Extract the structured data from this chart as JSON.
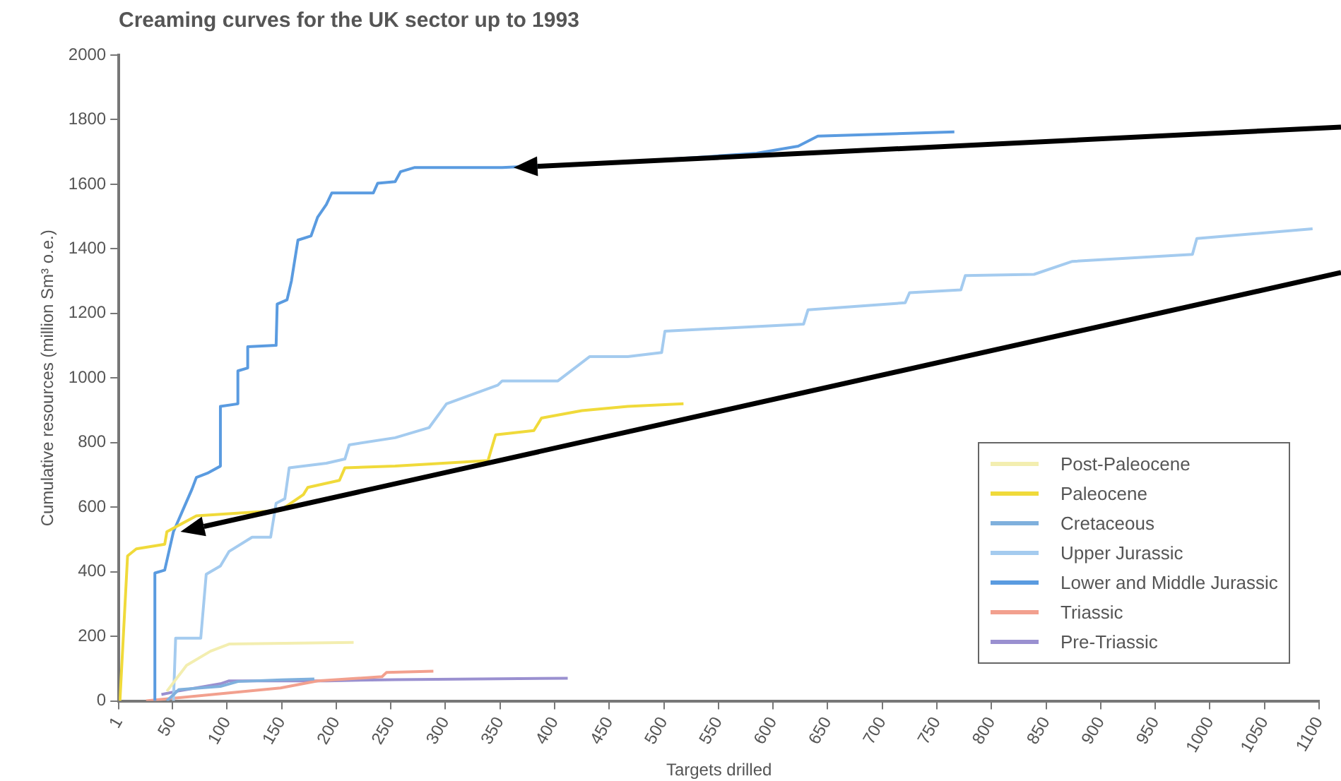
{
  "chart_data": {
    "type": "line",
    "title": "Creaming curves for the UK sector up to 1993",
    "xlabel": "Targets drilled",
    "ylabel": "Cumulative resources (million Sm³ o.e.)",
    "xlim": [
      1,
      1100
    ],
    "xticks": [
      1,
      50,
      100,
      150,
      200,
      250,
      300,
      350,
      400,
      450,
      500,
      550,
      600,
      650,
      700,
      750,
      800,
      850,
      900,
      950,
      1000,
      1050,
      1100
    ],
    "ylim": [
      0,
      2000
    ],
    "yticks": [
      0,
      200,
      400,
      600,
      800,
      1000,
      1200,
      1400,
      1600,
      1800,
      2000
    ],
    "grid": false,
    "legend": "bottom right",
    "marker": "none",
    "line_style": "solid",
    "series": [
      {
        "name": "Post-Paleocene",
        "color": "#f3eeb0",
        "x": [
          45,
          63,
          85,
          102,
          216
        ],
        "values": [
          30,
          110,
          154,
          176,
          181
        ]
      },
      {
        "name": "Paleocene",
        "color": "#f0da3a",
        "x": [
          2,
          9,
          17,
          43,
          45,
          72,
          149,
          170,
          174,
          203,
          208,
          254,
          339,
          346,
          381,
          388,
          425,
          467,
          518
        ],
        "values": [
          0,
          449,
          471,
          485,
          524,
          573,
          590,
          639,
          661,
          683,
          722,
          727,
          744,
          824,
          837,
          876,
          899,
          912,
          920
        ]
      },
      {
        "name": "Cretaceous",
        "color": "#7fb0dd",
        "x": [
          45,
          56,
          94,
          110,
          150,
          180
        ],
        "values": [
          0,
          35,
          45,
          60,
          65,
          68
        ]
      },
      {
        "name": "Upper Jurassic",
        "color": "#a4cbef",
        "x": [
          51,
          53,
          76,
          81,
          94,
          102,
          123,
          140,
          145,
          153,
          157,
          191,
          208,
          212,
          254,
          285,
          301,
          348,
          352,
          403,
          432,
          467,
          498,
          501,
          628,
          632,
          721,
          725,
          772,
          776,
          839,
          874,
          984,
          988,
          1094
        ],
        "values": [
          0,
          194,
          194,
          392,
          418,
          463,
          507,
          507,
          612,
          626,
          722,
          736,
          749,
          793,
          815,
          846,
          920,
          978,
          991,
          991,
          1066,
          1066,
          1079,
          1145,
          1167,
          1211,
          1233,
          1264,
          1273,
          1317,
          1321,
          1361,
          1383,
          1432,
          1462
        ]
      },
      {
        "name": "Lower and Middle Jurassic",
        "color": "#5a9be0",
        "x": [
          34,
          34,
          43,
          51,
          68,
          72,
          82,
          94,
          94,
          110,
          110,
          119,
          119,
          145,
          146,
          155,
          159,
          165,
          177,
          183,
          191,
          196,
          234,
          238,
          254,
          259,
          272,
          352,
          467,
          530,
          585,
          623,
          641,
          766
        ],
        "values": [
          0,
          396,
          405,
          524,
          656,
          692,
          705,
          727,
          912,
          920,
          1022,
          1031,
          1097,
          1101,
          1229,
          1242,
          1300,
          1427,
          1440,
          1498,
          1537,
          1573,
          1573,
          1603,
          1608,
          1639,
          1652,
          1652,
          1670,
          1683,
          1696,
          1718,
          1749,
          1762
        ]
      },
      {
        "name": "Triassic",
        "color": "#f2a08e",
        "x": [
          26,
          149,
          183,
          242,
          246,
          289
        ],
        "values": [
          0,
          40,
          62,
          75,
          88,
          92
        ]
      },
      {
        "name": "Pre-Triassic",
        "color": "#9a90d0",
        "x": [
          40,
          56,
          94,
          102,
          191,
          254,
          412
        ],
        "values": [
          20,
          31,
          53,
          62,
          62,
          66,
          70
        ]
      }
    ]
  }
}
